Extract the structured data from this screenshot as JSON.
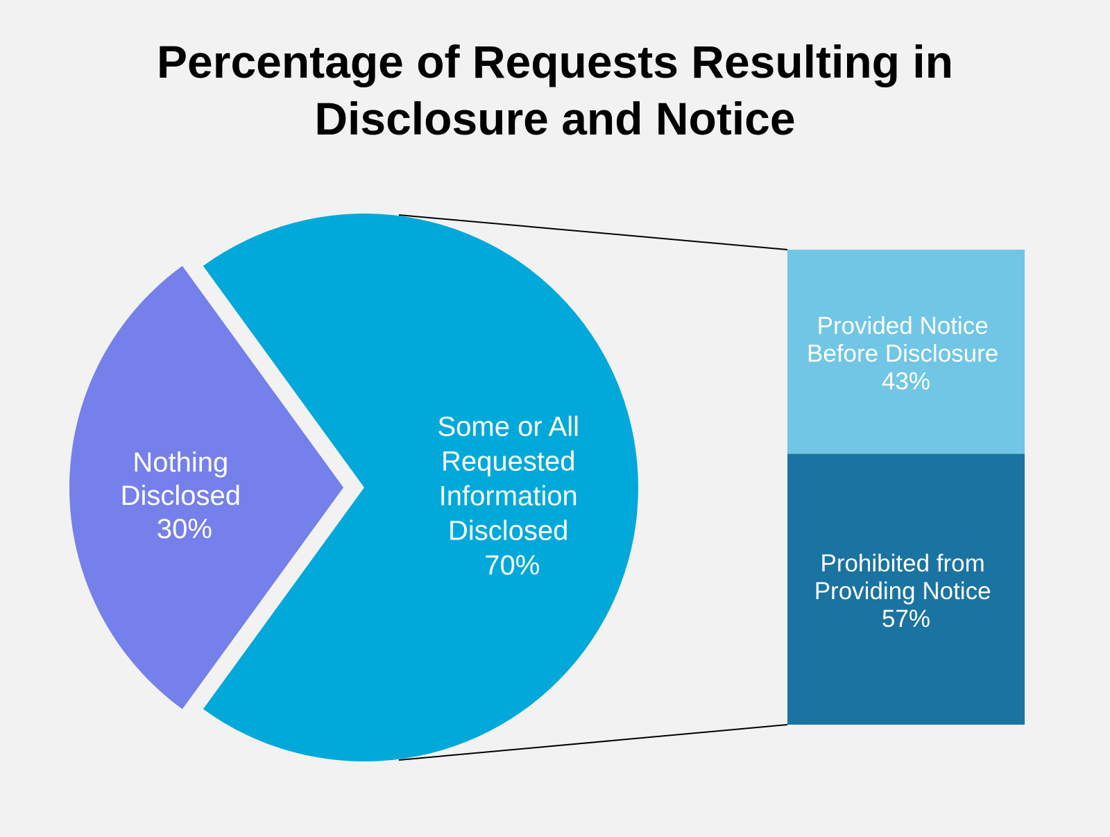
{
  "chart_data": {
    "type": "pie",
    "title_lines": [
      "Percentage of Requests Resulting in",
      "Disclosure and Notice"
    ],
    "slices": [
      {
        "label_lines": [
          "Nothing",
          "Disclosed"
        ],
        "value": 30,
        "value_label": "30%",
        "color": "#7580ea",
        "exploded": true
      },
      {
        "label_lines": [
          "Some or All",
          "Requested",
          "Information",
          "Disclosed"
        ],
        "value": 70,
        "value_label": "70%",
        "color": "#00a9d9",
        "exploded": false
      }
    ],
    "breakdown": {
      "type": "stacked-bar",
      "of_slice": "Some or All Requested Information Disclosed",
      "segments": [
        {
          "label_lines": [
            "Provided Notice",
            "Before Disclosure"
          ],
          "value": 43,
          "value_label": "43%",
          "color": "#70c6e4"
        },
        {
          "label_lines": [
            "Prohibited from",
            "Providing Notice"
          ],
          "value": 57,
          "value_label": "57%",
          "color": "#1a73a0"
        }
      ]
    },
    "connector_color": "#000000",
    "background": "#f2f2f2"
  }
}
